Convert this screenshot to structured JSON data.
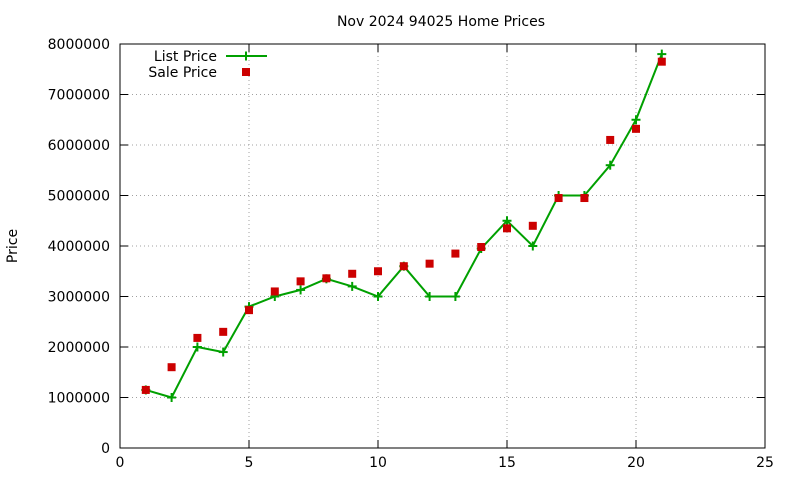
{
  "chart_data": {
    "type": "scatter",
    "title": "Nov 2024 94025 Home Prices",
    "xlabel": "",
    "ylabel": "Price",
    "xlim": [
      0,
      25
    ],
    "ylim": [
      0,
      8000000
    ],
    "xticks": [
      0,
      5,
      10,
      15,
      20,
      25
    ],
    "yticks": [
      0,
      1000000,
      2000000,
      3000000,
      4000000,
      5000000,
      6000000,
      7000000,
      8000000
    ],
    "grid": true,
    "legend_position": "top-left",
    "series": [
      {
        "name": "List Price",
        "style": "linespoints",
        "marker": "plus",
        "color": "#00a000",
        "x": [
          1,
          2,
          3,
          4,
          5,
          6,
          7,
          8,
          9,
          10,
          11,
          12,
          13,
          14,
          15,
          16,
          17,
          18,
          19,
          20,
          21
        ],
        "y": [
          1150000,
          1000000,
          2000000,
          1900000,
          2800000,
          3000000,
          3130000,
          3350000,
          3200000,
          3000000,
          3600000,
          3000000,
          3000000,
          3950000,
          4500000,
          4000000,
          5000000,
          5000000,
          5600000,
          6500000,
          7800000
        ]
      },
      {
        "name": "Sale Price",
        "style": "points",
        "marker": "square",
        "color": "#cc0000",
        "x": [
          1,
          2,
          3,
          4,
          5,
          6,
          7,
          8,
          9,
          10,
          11,
          12,
          13,
          14,
          15,
          16,
          17,
          18,
          19,
          20,
          21
        ],
        "y": [
          1150000,
          1600000,
          2180000,
          2300000,
          2730000,
          3100000,
          3300000,
          3360000,
          3450000,
          3500000,
          3600000,
          3650000,
          3850000,
          3980000,
          4350000,
          4400000,
          4950000,
          4950000,
          6100000,
          6320000,
          7650000
        ],
        "legend_note_y": 7450000
      }
    ]
  }
}
